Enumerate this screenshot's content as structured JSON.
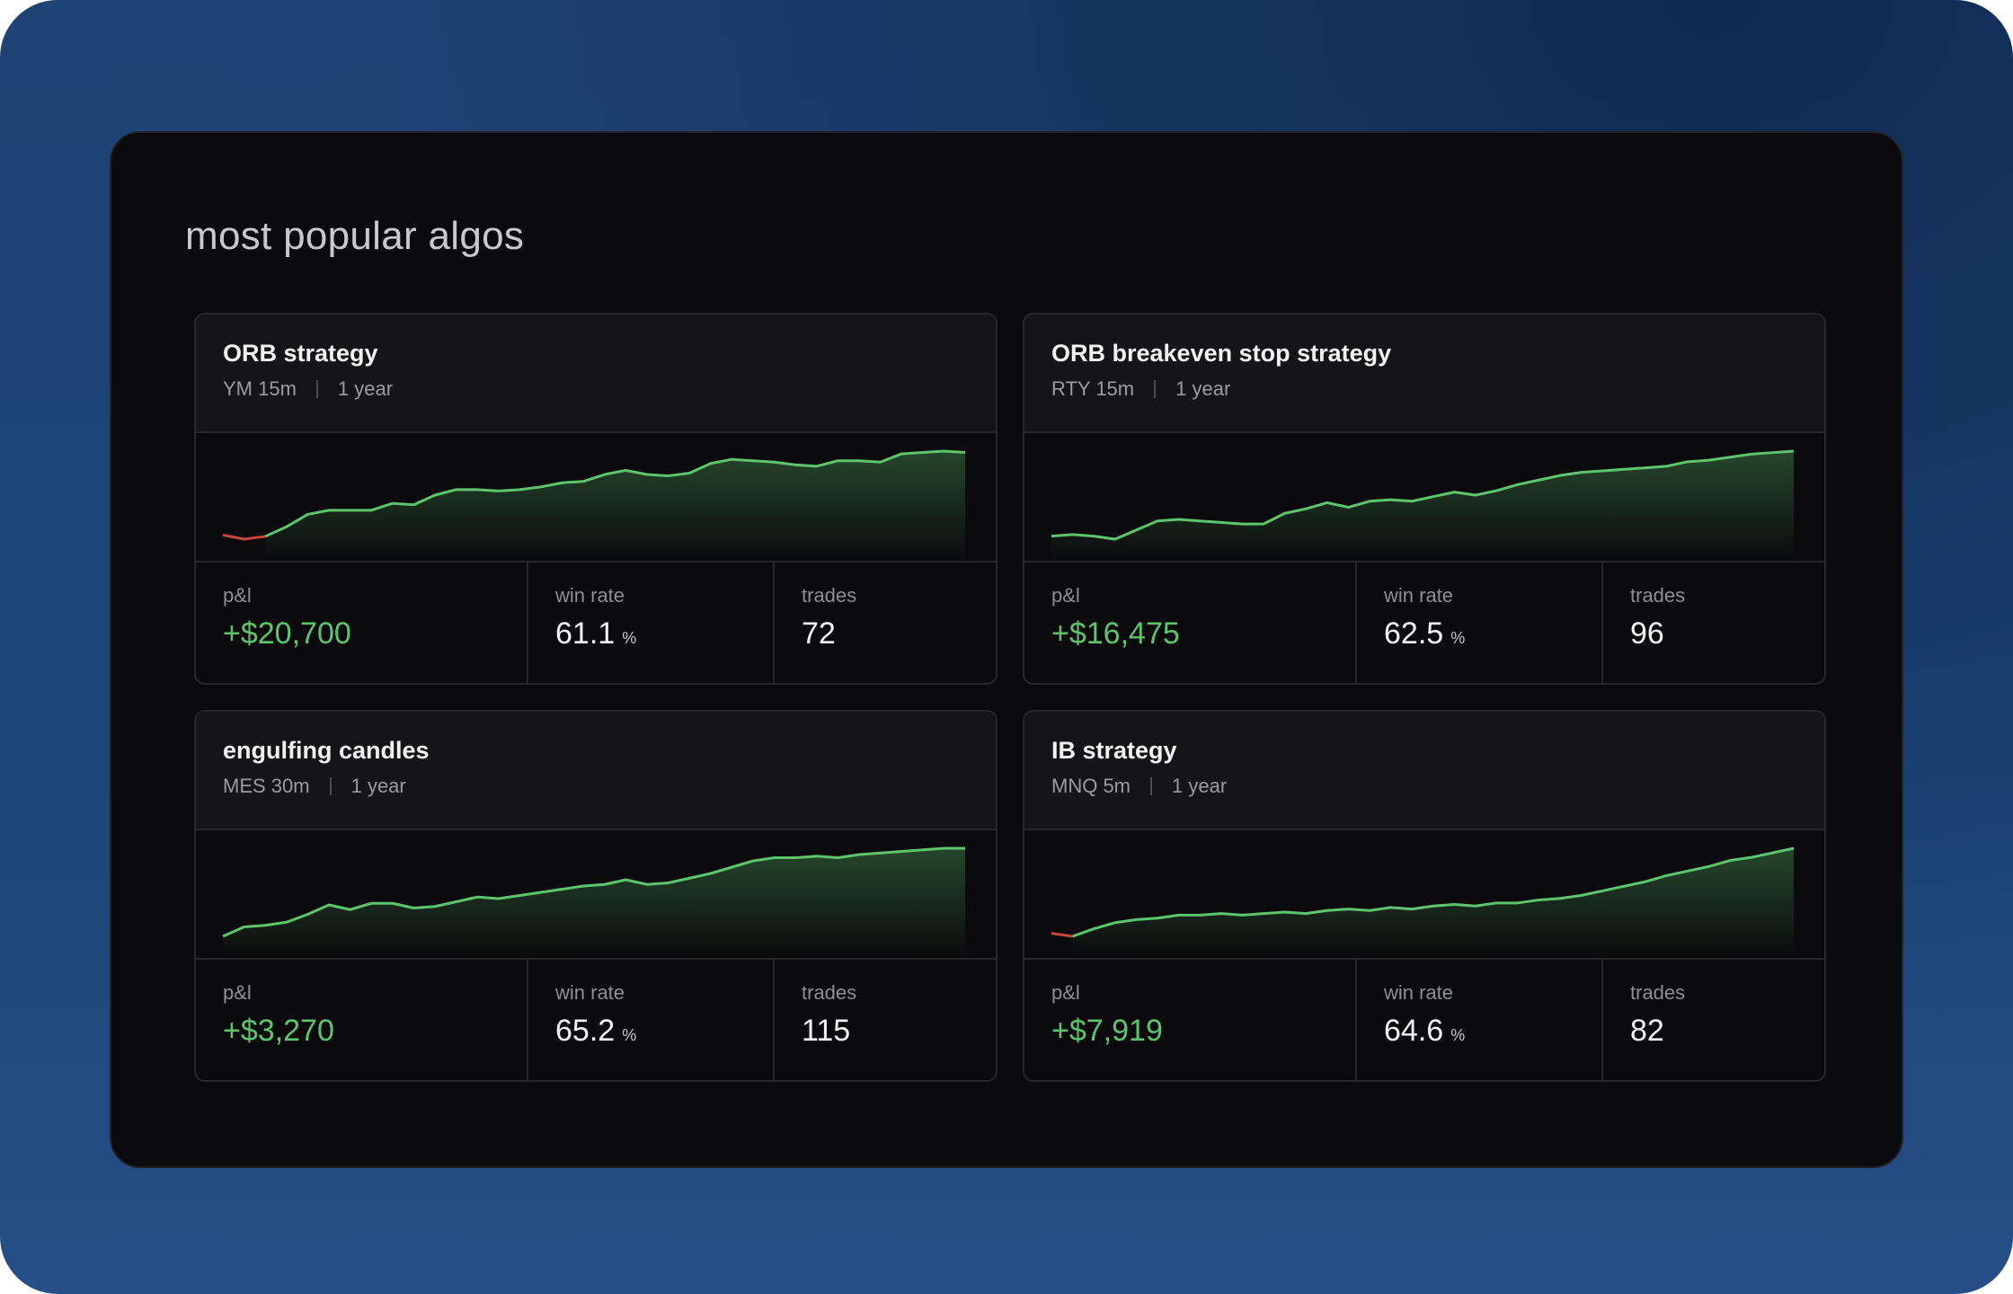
{
  "page": {
    "title": "most popular algos"
  },
  "colors": {
    "up": "#5dc56c",
    "down": "#c8473a",
    "panel": "#0b0b0d",
    "border": "#26282c"
  },
  "labels": {
    "pl": "p&l",
    "win_rate": "win rate",
    "trades": "trades",
    "percent": "%"
  },
  "algos": [
    {
      "name": "ORB strategy",
      "instrument": "YM 15m",
      "period": "1 year",
      "pl": "+$20,700",
      "win_rate": "61.1",
      "trades": "72",
      "equity": [
        0,
        -0.3,
        -0.1,
        0.6,
        1.5,
        1.8,
        1.8,
        1.8,
        2.3,
        2.2,
        2.9,
        3.3,
        3.3,
        3.2,
        3.3,
        3.5,
        3.8,
        3.9,
        4.4,
        4.7,
        4.4,
        4.3,
        4.5,
        5.2,
        5.5,
        5.4,
        5.3,
        5.1,
        5.0,
        5.4,
        5.4,
        5.3,
        5.9,
        6.0,
        6.1,
        6.0
      ],
      "negative_points": 3
    },
    {
      "name": "ORB breakeven stop strategy",
      "instrument": "RTY 15m",
      "period": "1 year",
      "pl": "+$16,475",
      "win_rate": "62.5",
      "trades": "96",
      "equity": [
        0,
        0.1,
        0,
        -0.2,
        0.4,
        1.0,
        1.1,
        1.0,
        0.9,
        0.8,
        0.8,
        1.5,
        1.8,
        2.2,
        1.9,
        2.3,
        2.4,
        2.3,
        2.6,
        2.9,
        2.7,
        3.0,
        3.4,
        3.7,
        4.0,
        4.2,
        4.3,
        4.4,
        4.5,
        4.6,
        4.9,
        5.0,
        5.2,
        5.4,
        5.5,
        5.6
      ],
      "negative_points": 0
    },
    {
      "name": "engulfing candles",
      "instrument": "MES 30m",
      "period": "1 year",
      "pl": "+$3,270",
      "win_rate": "65.2",
      "trades": "115",
      "equity": [
        0,
        0.6,
        0.7,
        0.9,
        1.4,
        2.0,
        1.7,
        2.1,
        2.1,
        1.8,
        1.9,
        2.2,
        2.5,
        2.4,
        2.6,
        2.8,
        3.0,
        3.2,
        3.3,
        3.6,
        3.3,
        3.4,
        3.7,
        4.0,
        4.4,
        4.8,
        5.0,
        5.0,
        5.1,
        5.0,
        5.2,
        5.3,
        5.4,
        5.5,
        5.6,
        5.6
      ],
      "negative_points": 0
    },
    {
      "name": "IB strategy",
      "instrument": "MNQ 5m",
      "period": "1 year",
      "pl": "+$7,919",
      "win_rate": "64.6",
      "trades": "82",
      "equity": [
        0,
        -0.2,
        0.3,
        0.7,
        0.9,
        1.0,
        1.2,
        1.2,
        1.3,
        1.2,
        1.3,
        1.4,
        1.3,
        1.5,
        1.6,
        1.5,
        1.7,
        1.6,
        1.8,
        1.9,
        1.8,
        2.0,
        2.0,
        2.2,
        2.3,
        2.5,
        2.8,
        3.1,
        3.4,
        3.8,
        4.1,
        4.4,
        4.8,
        5.0,
        5.3,
        5.6
      ],
      "negative_points": 2
    }
  ]
}
